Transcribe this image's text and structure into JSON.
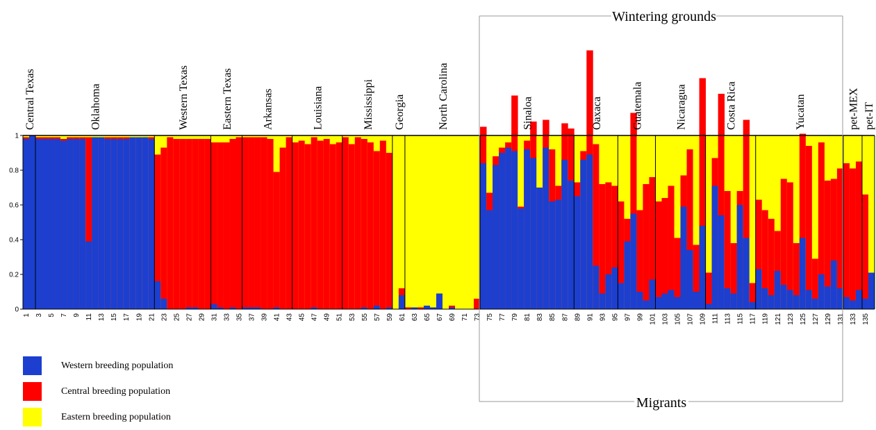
{
  "chart_data": {
    "type": "bar",
    "subtype": "stacked-ancestry",
    "ylim": [
      0,
      1
    ],
    "yticks": [
      "0",
      "0.2",
      "0.4",
      "0.6",
      "0.8",
      "1"
    ],
    "xticks": [
      "1",
      "3",
      "5",
      "7",
      "9",
      "11",
      "13",
      "15",
      "17",
      "19",
      "21",
      "23",
      "25",
      "27",
      "29",
      "31",
      "33",
      "35",
      "37",
      "39",
      "41",
      "43",
      "45",
      "47",
      "49",
      "51",
      "53",
      "55",
      "57",
      "59",
      "61",
      "63",
      "65",
      "67",
      "69",
      "71",
      "73",
      "75",
      "77",
      "79",
      "81",
      "83",
      "85",
      "87",
      "89",
      "91",
      "93",
      "95",
      "97",
      "99",
      "101",
      "103",
      "105",
      "107",
      "109",
      "111",
      "113",
      "115",
      "117",
      "119",
      "121",
      "123",
      "125",
      "127",
      "129",
      "131",
      "133",
      "135"
    ],
    "series": [
      {
        "name": "Western breeding population",
        "color": "#1c3fcf"
      },
      {
        "name": "Central breeding population",
        "color": "#ff0000"
      },
      {
        "name": "Eastern breeding population",
        "color": "#ffff00"
      }
    ],
    "groups": [
      {
        "label": "Central Texas",
        "start": 1,
        "end": 2
      },
      {
        "label": "Oklahoma",
        "start": 3,
        "end": 21
      },
      {
        "label": "Western Texas",
        "start": 22,
        "end": 30
      },
      {
        "label": "Eastern Texas",
        "start": 31,
        "end": 35
      },
      {
        "label": "Arkansas",
        "start": 36,
        "end": 43
      },
      {
        "label": "Louisiana",
        "start": 44,
        "end": 51
      },
      {
        "label": "Mississippi",
        "start": 52,
        "end": 59
      },
      {
        "label": "Georgia",
        "start": 60,
        "end": 61
      },
      {
        "label": "North Carolina",
        "start": 62,
        "end": 73
      },
      {
        "label": "Sinaloa",
        "start": 74,
        "end": 88
      },
      {
        "label": "Oaxaca",
        "start": 89,
        "end": 95
      },
      {
        "label": "Guatemala",
        "start": 96,
        "end": 101
      },
      {
        "label": "Nicaragua",
        "start": 102,
        "end": 109
      },
      {
        "label": "Costa Rica",
        "start": 110,
        "end": 117
      },
      {
        "label": "Yucatan",
        "start": 118,
        "end": 131
      },
      {
        "label": "pet-MEX",
        "start": 132,
        "end": 134
      },
      {
        "label": "pet-IT",
        "start": 135,
        "end": 136
      }
    ],
    "annotations": {
      "top": "Wintering grounds",
      "bottom": "Migrants"
    },
    "western": [
      0.98,
      1.0,
      0.98,
      0.98,
      0.98,
      0.98,
      0.97,
      0.98,
      0.98,
      0.98,
      0.39,
      0.99,
      0.99,
      0.98,
      0.98,
      0.98,
      0.98,
      0.99,
      0.99,
      0.99,
      0.98,
      0.16,
      0.06,
      0,
      0,
      0,
      0.01,
      0.01,
      0,
      0,
      0.03,
      0.01,
      0,
      0.01,
      0,
      0.01,
      0.01,
      0.01,
      0,
      0,
      0.01,
      0,
      0,
      0,
      0,
      0,
      0.01,
      0,
      0,
      0,
      0,
      0,
      0,
      0,
      0.01,
      0,
      0.02,
      0,
      0.01,
      0,
      0.08,
      0,
      0.01,
      0,
      0.02,
      0.01,
      0.09,
      0,
      0.01,
      0,
      0,
      0,
      0,
      0.84,
      0.57,
      0.83,
      0.9,
      0.93,
      0.91,
      0.58,
      0.92,
      0.87,
      0.7,
      0.93,
      0.62,
      0.63,
      0.86,
      0.74,
      0.65,
      0.86,
      0.89,
      0.25,
      0.09,
      0.2,
      0.24,
      0.15,
      0.39,
      0.55,
      0.1,
      0.05,
      0.17,
      0.07,
      0.09,
      0.11,
      0.07,
      0.59,
      0.34,
      0.1,
      0.48,
      0.03,
      0.71,
      0.54,
      0.12,
      0.09,
      0.6,
      0.41,
      0.04,
      0.23,
      0.12,
      0.08,
      0.22,
      0.14,
      0.11,
      0.08,
      0.41,
      0.11,
      0.06,
      0.2,
      0.13,
      0.28,
      0.12,
      0.07,
      0.05,
      0.11,
      0.06,
      0.21
    ],
    "central": [
      0.01,
      0,
      0.01,
      0.01,
      0.01,
      0.01,
      0.01,
      0.01,
      0.01,
      0.01,
      0.6,
      0,
      0,
      0.01,
      0.01,
      0.01,
      0.01,
      0,
      0,
      0,
      0.01,
      0.73,
      0.87,
      0.99,
      0.98,
      0.98,
      0.97,
      0.97,
      0.98,
      0.98,
      0.93,
      0.95,
      0.96,
      0.97,
      0.99,
      0.98,
      0.98,
      0.98,
      0.99,
      0.98,
      0.78,
      0.93,
      0.99,
      0.96,
      0.97,
      0.95,
      0.98,
      0.97,
      0.98,
      0.95,
      0.96,
      0.99,
      0.95,
      0.99,
      0.97,
      0.96,
      0.89,
      0.97,
      0.89,
      0,
      0.04,
      0.01,
      0,
      0.01,
      0,
      0,
      0,
      0,
      0.01,
      0,
      0,
      0,
      0.06,
      0.21,
      0.1,
      0.05,
      0.03,
      0.03,
      0.32,
      0.01,
      0.05,
      0.21,
      0.0,
      0.16,
      0.3,
      0.08,
      0.21,
      0.3,
      0.08,
      0.05,
      0.6,
      0.7,
      0.63,
      0.53,
      0.47,
      0.47,
      0.13,
      0.58,
      0.47,
      0.67,
      0.59,
      0.55,
      0.55,
      0.6,
      0.34,
      0.18,
      0.58,
      0.27,
      0.85,
      0.18,
      0.16,
      0.7,
      0.56,
      0.29,
      0.08,
      0.68,
      0.11,
      0.4,
      0.45,
      0.44,
      0.23,
      0.61,
      0.62,
      0.3,
      0.6,
      0.83,
      0.23,
      0.76,
      0.61,
      0.47,
      0.69,
      0.77,
      0.76,
      0.74,
      0.6
    ],
    "eastern": [
      0.01,
      0,
      0.01,
      0.01,
      0.01,
      0.01,
      0.02,
      0.01,
      0.01,
      0.01,
      0.01,
      0.01,
      0.01,
      0.01,
      0.01,
      0.01,
      0.01,
      0.01,
      0.01,
      0.01,
      0.01,
      0.11,
      0.07,
      0.01,
      0.02,
      0.02,
      0.02,
      0.02,
      0.02,
      0.02,
      0.04,
      0.04,
      0.04,
      0.02,
      0.01,
      0.01,
      0.01,
      0.01,
      0.01,
      0.02,
      0.21,
      0.07,
      0.01,
      0.04,
      0.03,
      0.05,
      0.01,
      0.03,
      0.02,
      0.05,
      0.04,
      0.01,
      0.05,
      0.01,
      0.02,
      0.04,
      0.09,
      0.03,
      0.1,
      1.0,
      0.88,
      0.99,
      0.99,
      0.99,
      0.98,
      0.99,
      0.91,
      1.0,
      0.98,
      1.0,
      1.0,
      1.0,
      0.1,
      0.22,
      0.07,
      0.05,
      0.04,
      0.06,
      0.1,
      0.07,
      0.08,
      0.09,
      0.07,
      0.22,
      0.07,
      0.06,
      0.05,
      0.05,
      0.06,
      0.06,
      0.15,
      0.21,
      0.17,
      0.23,
      0.38,
      0.14,
      0.32,
      0.35,
      0.48,
      0.16,
      0.34,
      0.36,
      0.34,
      0.33,
      0.07,
      0.48,
      0.32,
      0.25,
      0.12,
      0.11,
      0.3,
      0.18,
      0.35,
      0.35,
      0.32,
      0.28,
      0.66,
      0.48,
      0.47,
      0.34,
      0.63,
      0.28,
      0.3,
      0.29,
      0.29,
      0.06,
      0.57,
      0.11,
      0.11,
      0.59,
      0.18,
      0.16,
      0.24,
      0.13,
      0.2,
      0.19
    ]
  },
  "legend": {
    "western": "Western breeding population",
    "central": "Central breeding population",
    "eastern": "Eastern breeding population"
  },
  "colors": {
    "western": "#1c3fcf",
    "central": "#ff0000",
    "eastern": "#ffff00"
  }
}
